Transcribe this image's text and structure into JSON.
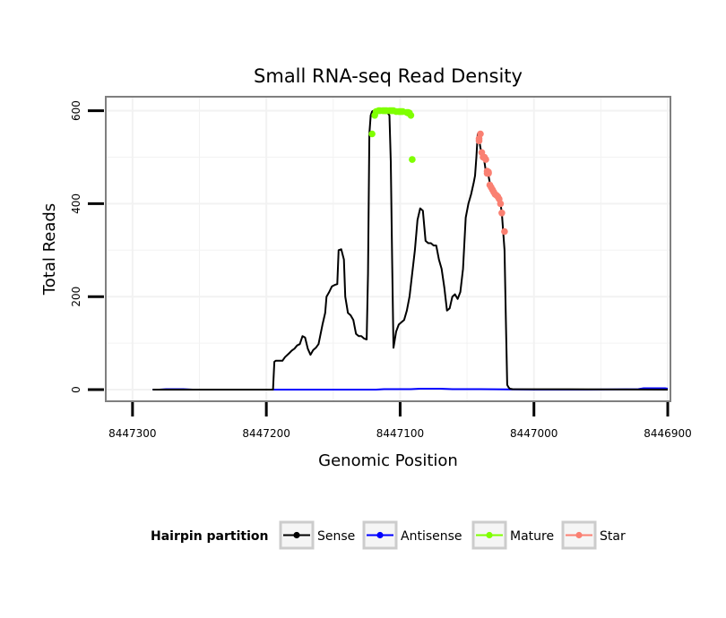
{
  "chart_data": {
    "type": "line",
    "title": "Small RNA-seq Read Density",
    "xlabel": "Genomic Position",
    "ylabel": "Total Reads",
    "xlim": [
      8447320,
      8446898
    ],
    "x_reversed": true,
    "ylim": [
      -25,
      630
    ],
    "x_ticks": [
      8447300,
      8447200,
      8447100,
      8447000,
      8446900
    ],
    "x_tick_labels": [
      "8447300",
      "8447200",
      "8447100",
      "8447000",
      "8446900"
    ],
    "y_ticks": [
      0,
      200,
      400,
      600
    ],
    "y_tick_labels": [
      "0",
      "200",
      "400",
      "600"
    ],
    "grid": true,
    "legend_position": "bottom",
    "legend_title": "Hairpin partition",
    "colors": {
      "Sense": "#000000",
      "Antisense": "#0000ff",
      "Mature": "#7fff00",
      "Star": "#fa8072"
    },
    "series": [
      {
        "name": "Sense",
        "x": [
          8447285,
          8447195,
          8447194,
          8447193,
          8447188,
          8447186,
          8447183,
          8447181,
          8447179,
          8447177,
          8447175,
          8447173,
          8447171,
          8447169,
          8447167,
          8447165,
          8447163,
          8447161,
          8447158,
          8447156,
          8447155,
          8447153,
          8447151,
          8447149,
          8447147,
          8447146,
          8447144,
          8447142,
          8447141,
          8447139,
          8447137,
          8447135,
          8447133,
          8447131,
          8447129,
          8447127,
          8447125,
          8447124,
          8447123,
          8447122,
          8447121,
          8447120,
          8447118,
          8447116,
          8447114,
          8447112,
          8447111,
          8447110,
          8447109,
          8447108,
          8447107,
          8447106,
          8447105,
          8447103,
          8447101,
          8447099,
          8447097,
          8447095,
          8447093,
          8447091,
          8447089,
          8447087,
          8447085,
          8447083,
          8447081,
          8447079,
          8447077,
          8447075,
          8447073,
          8447071,
          8447069,
          8447067,
          8447065,
          8447063,
          8447061,
          8447059,
          8447057,
          8447055,
          8447053,
          8447051,
          8447049,
          8447047,
          8447045,
          8447044,
          8447043,
          8447042,
          8447041,
          8447040,
          8447039,
          8447038,
          8447037,
          8447036,
          8447035,
          8447034,
          8447033,
          8447032,
          8447031,
          8447030,
          8447029,
          8447028,
          8447027,
          8447026,
          8447025,
          8447024,
          8447023,
          8447022,
          8447021,
          8447020,
          8447019,
          8447018,
          8447016,
          8446900
        ],
        "y": [
          0,
          0,
          60,
          62,
          62,
          70,
          78,
          84,
          88,
          95,
          98,
          115,
          112,
          88,
          75,
          85,
          90,
          98,
          140,
          165,
          200,
          210,
          222,
          225,
          227,
          300,
          302,
          280,
          200,
          165,
          160,
          150,
          120,
          115,
          115,
          110,
          108,
          250,
          550,
          590,
          598,
          600,
          600,
          600,
          600,
          598,
          595,
          596,
          594,
          590,
          490,
          280,
          90,
          125,
          140,
          145,
          150,
          170,
          200,
          250,
          300,
          365,
          390,
          385,
          320,
          315,
          315,
          310,
          310,
          280,
          260,
          220,
          170,
          175,
          200,
          205,
          195,
          210,
          260,
          370,
          400,
          420,
          445,
          460,
          500,
          550,
          540,
          520,
          510,
          500,
          490,
          470,
          465,
          460,
          445,
          440,
          430,
          425,
          420,
          415,
          410,
          405,
          400,
          380,
          340,
          300,
          150,
          10,
          5,
          2,
          1,
          0
        ]
      },
      {
        "name": "Antisense",
        "x": [
          8447285,
          8447280,
          8447275,
          8447262,
          8447255,
          8447240,
          8447200,
          8447170,
          8447150,
          8447118,
          8447112,
          8447092,
          8447085,
          8447070,
          8447061,
          8447040,
          8447000,
          8446960,
          8446922,
          8446918,
          8446910,
          8446902,
          8446900
        ],
        "y": [
          0,
          0,
          1,
          1,
          0,
          0,
          0,
          0,
          0,
          0,
          1,
          1,
          2,
          2,
          1,
          1,
          0,
          0,
          1,
          3,
          3,
          3,
          2
        ]
      },
      {
        "name": "Mature",
        "x": [
          8447121,
          8447119,
          8447118,
          8447116,
          8447115,
          8447113,
          8447112,
          8447111,
          8447110,
          8447108,
          8447107,
          8447106,
          8447105,
          8447103,
          8447101,
          8447100,
          8447099,
          8447098,
          8447095,
          8447094,
          8447094,
          8447093,
          8447092,
          8447091
        ],
        "y": [
          550,
          590,
          598,
          600,
          600,
          600,
          600,
          600,
          600,
          600,
          600,
          600,
          600,
          598,
          598,
          598,
          598,
          598,
          596,
          595,
          596,
          595,
          590,
          495
        ]
      },
      {
        "name": "Star",
        "x": [
          8447041,
          8447041,
          8447040,
          8447039,
          8447038,
          8447037,
          8447036,
          8447035,
          8447035,
          8447034,
          8447034,
          8447033,
          8447032,
          8447031,
          8447030,
          8447029,
          8447028,
          8447027,
          8447026,
          8447025,
          8447024,
          8447022
        ],
        "y": [
          535,
          540,
          550,
          510,
          500,
          500,
          495,
          470,
          465,
          468,
          465,
          440,
          435,
          430,
          425,
          420,
          418,
          415,
          410,
          400,
          380,
          340
        ]
      }
    ]
  }
}
